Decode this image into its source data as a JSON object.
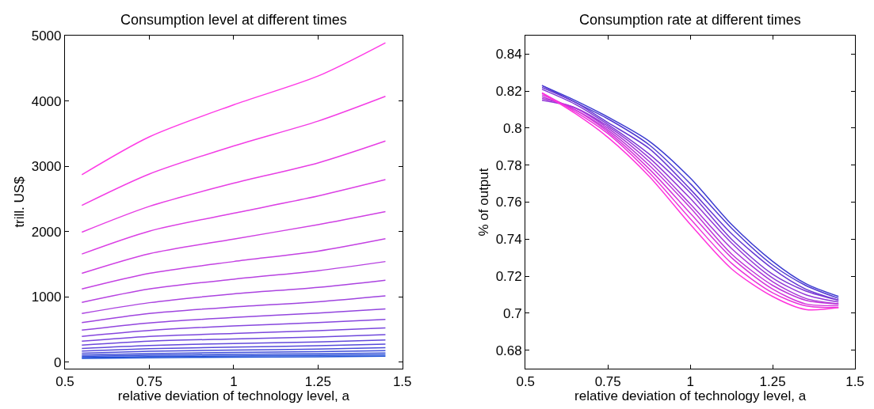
{
  "chart_data": [
    {
      "type": "line",
      "title": "Consumption level at different times",
      "xlabel": "relative deviation of technology level, a",
      "ylabel": "trill. US$",
      "x": [
        0.55,
        0.75,
        1.0,
        1.25,
        1.45
      ],
      "xlim": [
        0.5,
        1.5
      ],
      "xticks": [
        0.5,
        0.75,
        1,
        1.25,
        1.5
      ],
      "ylim": [
        -100,
        5000
      ],
      "yticks": [
        0,
        1000,
        2000,
        3000,
        4000,
        5000
      ],
      "series": [
        {
          "color": "#1a4fd6",
          "values": [
            56,
            67,
            76,
            82,
            90
          ]
        },
        {
          "color": "#264ed7",
          "values": [
            70,
            84,
            95,
            102,
            112
          ]
        },
        {
          "color": "#324dd8",
          "values": [
            88,
            105,
            118,
            128,
            140
          ]
        },
        {
          "color": "#3e4cd9",
          "values": [
            110,
            130,
            148,
            160,
            175
          ]
        },
        {
          "color": "#4a4bd9",
          "values": [
            135,
            165,
            185,
            200,
            220
          ]
        },
        {
          "color": "#564ada",
          "values": [
            170,
            205,
            230,
            250,
            275
          ]
        },
        {
          "color": "#6249db",
          "values": [
            210,
            255,
            285,
            310,
            340
          ]
        },
        {
          "color": "#6e48dc",
          "values": [
            260,
            320,
            355,
            385,
            420
          ]
        },
        {
          "color": "#7a47dd",
          "values": [
            320,
            395,
            440,
            480,
            525
          ]
        },
        {
          "color": "#8646de",
          "values": [
            395,
            485,
            555,
            605,
            655
          ]
        },
        {
          "color": "#9245de",
          "values": [
            490,
            600,
            685,
            750,
            815
          ]
        },
        {
          "color": "#9f44df",
          "values": [
            605,
            745,
            845,
            925,
            1015
          ]
        },
        {
          "color": "#ab43e0",
          "values": [
            745,
            910,
            1045,
            1145,
            1255
          ]
        },
        {
          "color": "#b742e1",
          "values": [
            915,
            1120,
            1270,
            1400,
            1540
          ]
        },
        {
          "color": "#c341e2",
          "values": [
            1120,
            1360,
            1540,
            1700,
            1890
          ]
        },
        {
          "color": "#cf40e3",
          "values": [
            1360,
            1660,
            1885,
            2105,
            2305
          ]
        },
        {
          "color": "#db3fe4",
          "values": [
            1655,
            2005,
            2280,
            2545,
            2795
          ]
        },
        {
          "color": "#e73ee4",
          "values": [
            1990,
            2385,
            2740,
            3050,
            3385
          ]
        },
        {
          "color": "#f33de5",
          "values": [
            2400,
            2880,
            3310,
            3690,
            4070
          ]
        },
        {
          "color": "#ff3ce6",
          "values": [
            2870,
            3450,
            3940,
            4380,
            4890
          ]
        }
      ]
    },
    {
      "type": "line",
      "title": "Consumption rate at different times",
      "xlabel": "relative deviation of technology level, a",
      "ylabel": "% of output",
      "x": [
        0.55,
        0.65,
        0.75,
        0.875,
        1.0,
        1.125,
        1.25,
        1.35,
        1.45
      ],
      "xlim": [
        0.5,
        1.5
      ],
      "xticks": [
        0.5,
        0.75,
        1,
        1.25,
        1.5
      ],
      "ylim": [
        0.67,
        0.85
      ],
      "yticks": [
        0.68,
        0.7,
        0.72,
        0.74,
        0.76,
        0.78,
        0.8,
        0.82,
        0.84
      ],
      "series": [
        {
          "color": "#3a3ad0",
          "values": [
            0.823,
            0.815,
            0.806,
            0.793,
            0.773,
            0.748,
            0.728,
            0.716,
            0.709
          ]
        },
        {
          "color": "#5039d1",
          "values": [
            0.823,
            0.814,
            0.805,
            0.791,
            0.77,
            0.746,
            0.726,
            0.715,
            0.708
          ]
        },
        {
          "color": "#6638d3",
          "values": [
            0.822,
            0.814,
            0.803,
            0.789,
            0.767,
            0.743,
            0.724,
            0.713,
            0.707
          ]
        },
        {
          "color": "#7c38d4",
          "values": [
            0.821,
            0.813,
            0.802,
            0.786,
            0.765,
            0.74,
            0.721,
            0.712,
            0.707
          ]
        },
        {
          "color": "#9237d6",
          "values": [
            0.815,
            0.811,
            0.801,
            0.784,
            0.762,
            0.738,
            0.719,
            0.71,
            0.706
          ]
        },
        {
          "color": "#a836d7",
          "values": [
            0.816,
            0.811,
            0.8,
            0.782,
            0.759,
            0.735,
            0.717,
            0.708,
            0.705
          ]
        },
        {
          "color": "#bd35d8",
          "values": [
            0.817,
            0.81,
            0.799,
            0.78,
            0.757,
            0.732,
            0.715,
            0.707,
            0.705
          ]
        },
        {
          "color": "#d335da",
          "values": [
            0.818,
            0.81,
            0.798,
            0.778,
            0.754,
            0.73,
            0.713,
            0.705,
            0.704
          ]
        },
        {
          "color": "#e934db",
          "values": [
            0.819,
            0.809,
            0.797,
            0.776,
            0.751,
            0.727,
            0.711,
            0.704,
            0.703
          ]
        },
        {
          "color": "#ff33dd",
          "values": [
            0.819,
            0.808,
            0.795,
            0.774,
            0.748,
            0.724,
            0.709,
            0.702,
            0.703
          ]
        }
      ]
    }
  ]
}
